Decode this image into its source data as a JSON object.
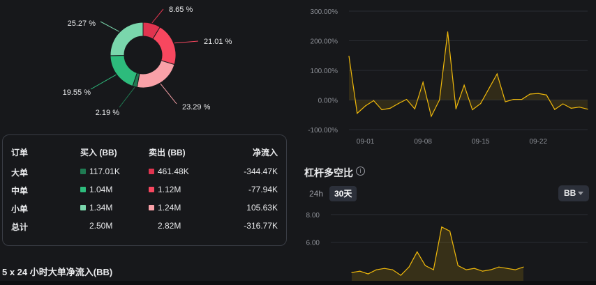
{
  "donut": {
    "segments": [
      {
        "label": "8.65 %",
        "value": 8.65,
        "color": "#e0344f"
      },
      {
        "label": "21.01 %",
        "value": 21.01,
        "color": "#f8475f"
      },
      {
        "label": "23.29 %",
        "value": 23.29,
        "color": "#f9a1a8"
      },
      {
        "label": "2.19 %",
        "value": 2.19,
        "color": "#1f7a52"
      },
      {
        "label": "19.55 %",
        "value": 19.55,
        "color": "#2dbb7c"
      },
      {
        "label": "25.27 %",
        "value": 25.27,
        "color": "#7ad6ac"
      }
    ]
  },
  "table": {
    "headers": [
      "订单",
      "买入 (BB)",
      "卖出 (BB)",
      "净流入"
    ],
    "rows": [
      {
        "name": "大单",
        "buy": "117.01K",
        "sell": "461.48K",
        "net": "-344.47K",
        "buy_color": "#1f7a52",
        "sell_color": "#e0344f"
      },
      {
        "name": "中单",
        "buy": "1.04M",
        "sell": "1.12M",
        "net": "-77.94K",
        "buy_color": "#2dbb7c",
        "sell_color": "#f8475f"
      },
      {
        "name": "小单",
        "buy": "1.34M",
        "sell": "1.24M",
        "net": "105.63K",
        "buy_color": "#7ad6ac",
        "sell_color": "#f9a1a8"
      },
      {
        "name": "总计",
        "buy": "2.50M",
        "sell": "2.82M",
        "net": "-316.77K"
      }
    ]
  },
  "bottom_title": "5 x 24 小时大单净流入(BB)",
  "leverage": {
    "title": "杠杆多空比",
    "tabs": [
      "24h",
      "30天"
    ],
    "active_tab": "30天",
    "currency": "BB"
  },
  "colors": {
    "line": "#f0b90b",
    "grid": "#2a2d33",
    "axis_text": "#8c8f96"
  },
  "chart_data": [
    {
      "type": "line",
      "x_ticks": [
        "09-01",
        "09-08",
        "09-15",
        "09-22"
      ],
      "y_ticks": [
        "300.00%",
        "200.00%",
        "100.00%",
        "0.00%",
        "-100.00%"
      ],
      "ylim": [
        -100,
        300
      ],
      "series": [
        {
          "values": [
            148,
            -45,
            -20,
            -2,
            -33,
            -28,
            -12,
            2,
            -30,
            60,
            -55,
            0,
            230,
            -30,
            50,
            -33,
            -12,
            38,
            88,
            -6,
            2,
            2,
            20,
            22,
            17,
            -32,
            -13,
            -28,
            -24,
            -31
          ]
        }
      ]
    },
    {
      "type": "area",
      "y_ticks": [
        "8.00",
        "6.00"
      ],
      "ylim": [
        3.2,
        8.4
      ],
      "series": [
        {
          "values": [
            3.8,
            3.9,
            3.7,
            4.0,
            4.1,
            4.0,
            3.6,
            4.2,
            5.3,
            4.3,
            4.0,
            7.1,
            6.8,
            4.3,
            4.0,
            4.1,
            3.9,
            4.0,
            4.2,
            4.1,
            4.0,
            4.2
          ]
        }
      ]
    }
  ]
}
